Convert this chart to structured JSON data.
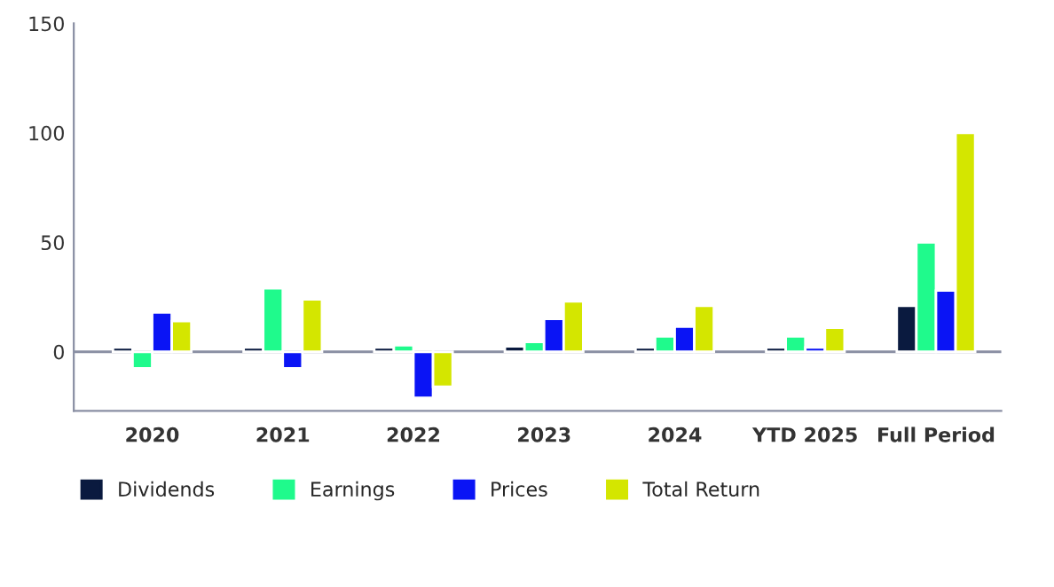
{
  "chart_data": {
    "type": "bar",
    "categories": [
      "2020",
      "2021",
      "2022",
      "2023",
      "2024",
      "YTD 2025",
      "Full Period"
    ],
    "series": [
      {
        "name": "Dividends",
        "color": "#0a1a3f",
        "values": [
          2,
          2,
          2,
          2.5,
          2,
          2,
          21
        ]
      },
      {
        "name": "Earnings",
        "color": "#1ffa8c",
        "values": [
          -7.5,
          29,
          3,
          4.5,
          7,
          7,
          50
        ]
      },
      {
        "name": "Prices",
        "color": "#0a14f5",
        "values": [
          18,
          -7.5,
          -21,
          15,
          11.5,
          2,
          28
        ]
      },
      {
        "name": "Total Return",
        "color": "#d4e600",
        "values": [
          14,
          24,
          -16,
          23,
          21,
          11,
          100
        ]
      }
    ],
    "ylim": [
      -27,
      150
    ],
    "yticks": [
      0,
      50,
      100,
      150
    ],
    "ref_lines": [
      {
        "axis": "y",
        "value": 0,
        "color": "#8a8fa3"
      }
    ],
    "grid": false,
    "legend": "bottom left"
  }
}
